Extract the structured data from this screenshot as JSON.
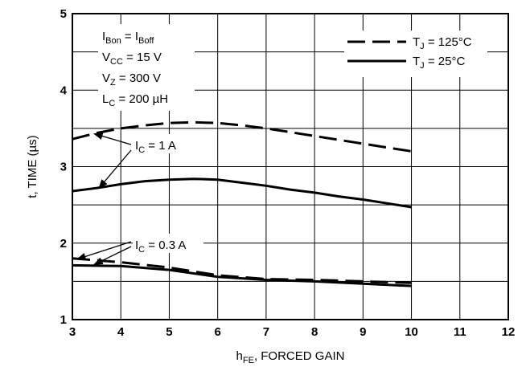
{
  "chart_data": {
    "type": "line",
    "title": "",
    "xlabel": {
      "main": "h",
      "sub": "FE",
      "rest": ", FORCED GAIN"
    },
    "ylabel": "t, TIME (µs)",
    "xlim": [
      3,
      12
    ],
    "ylim": [
      1,
      5
    ],
    "x_ticks": [
      "3",
      "4",
      "5",
      "6",
      "7",
      "8",
      "9",
      "10",
      "11",
      "12"
    ],
    "y_ticks": [
      "1",
      "2",
      "3",
      "4",
      "5"
    ],
    "grid": true,
    "conditions": [
      {
        "main": "I",
        "sub": "Bon",
        "rest": " = I",
        "sub2": "Boff"
      },
      {
        "main": "V",
        "sub": "CC",
        "rest": " = 15 V"
      },
      {
        "main": "V",
        "sub": "Z",
        "rest": " = 300 V"
      },
      {
        "main": "L",
        "sub": "C",
        "rest": " = 200 µH"
      }
    ],
    "legend": {
      "placement": "top-right",
      "entries": [
        {
          "main": "T",
          "sub": "J",
          "rest": " = 125°C",
          "style": "dashed"
        },
        {
          "main": "T",
          "sub": "J",
          "rest": " = 25°C",
          "style": "solid"
        }
      ]
    },
    "annotations": [
      {
        "main": "I",
        "sub": "C",
        "rest": " = 1 A"
      },
      {
        "main": "I",
        "sub": "C",
        "rest": " = 0.3 A"
      }
    ],
    "series": [
      {
        "name": "T_J = 125°C, I_C = 1 A",
        "style": "dashed",
        "x": [
          3,
          3.5,
          4,
          4.5,
          5,
          5.5,
          6,
          6.5,
          7,
          7.5,
          8,
          8.5,
          9,
          9.5,
          10
        ],
        "y": [
          3.36,
          3.44,
          3.5,
          3.54,
          3.57,
          3.58,
          3.57,
          3.54,
          3.5,
          3.45,
          3.4,
          3.35,
          3.3,
          3.25,
          3.2
        ]
      },
      {
        "name": "T_J = 25°C, I_C = 1 A",
        "style": "solid",
        "x": [
          3,
          3.5,
          4,
          4.5,
          5,
          5.5,
          6,
          6.5,
          7,
          7.5,
          8,
          8.5,
          9,
          9.5,
          10
        ],
        "y": [
          2.68,
          2.72,
          2.77,
          2.81,
          2.83,
          2.84,
          2.83,
          2.79,
          2.75,
          2.7,
          2.66,
          2.61,
          2.57,
          2.52,
          2.47
        ]
      },
      {
        "name": "T_J = 125°C, I_C = 0.3 A",
        "style": "dashed",
        "x": [
          3,
          4,
          5,
          6,
          7,
          8,
          9,
          10
        ],
        "y": [
          1.8,
          1.75,
          1.68,
          1.58,
          1.53,
          1.52,
          1.5,
          1.48
        ]
      },
      {
        "name": "T_J = 25°C, I_C = 0.3 A",
        "style": "solid",
        "x": [
          3,
          4,
          5,
          6,
          7,
          8,
          9,
          10
        ],
        "y": [
          1.71,
          1.7,
          1.65,
          1.56,
          1.52,
          1.5,
          1.47,
          1.44
        ]
      }
    ]
  }
}
